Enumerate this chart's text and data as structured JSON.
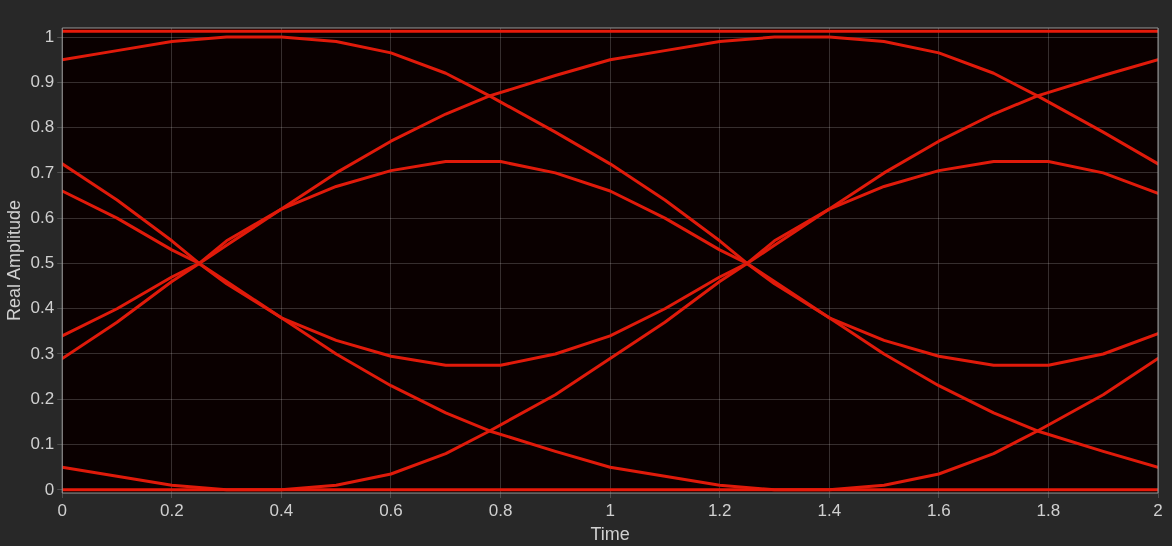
{
  "chart_data": {
    "type": "line",
    "xlabel": "Time",
    "ylabel": "Real Amplitude",
    "xlim": [
      0,
      2
    ],
    "ylim": [
      -0.007,
      1.02
    ],
    "xticks": [
      0,
      0.2,
      0.4,
      0.6,
      0.8,
      1,
      1.2,
      1.4,
      1.6,
      1.8,
      2
    ],
    "yticks": [
      0,
      0.1,
      0.2,
      0.3,
      0.4,
      0.5,
      0.6,
      0.7,
      0.8,
      0.9,
      1
    ],
    "grid": true,
    "legend": false,
    "marker": "none",
    "line_style": "solid",
    "series": [
      {
        "color": "#e81a0a",
        "x": [
          0,
          2
        ],
        "values": [
          1.013,
          1.013
        ]
      },
      {
        "color": "#e81a0a",
        "x": [
          0,
          2
        ],
        "values": [
          0,
          0
        ]
      },
      {
        "color": "#e01a0a",
        "x": [
          0,
          0.1,
          0.2,
          0.3,
          0.4,
          0.5,
          0.6,
          0.7,
          0.78,
          0.9,
          1,
          1.1,
          1.2,
          1.25,
          1.3,
          1.4,
          1.5,
          1.6,
          1.7,
          1.78,
          1.9,
          2
        ],
        "values": [
          0.95,
          0.97,
          0.99,
          1,
          1,
          0.99,
          0.965,
          0.92,
          0.87,
          0.79,
          0.72,
          0.64,
          0.55,
          0.5,
          0.455,
          0.38,
          0.3,
          0.23,
          0.17,
          0.13,
          0.085,
          0.05
        ]
      },
      {
        "color": "#e01a0a",
        "x": [
          0,
          0.1,
          0.2,
          0.3,
          0.4,
          0.5,
          0.6,
          0.7,
          0.78,
          0.9,
          1,
          1.1,
          1.2,
          1.25,
          1.3,
          1.4,
          1.5,
          1.6,
          1.7,
          1.78,
          1.9,
          2
        ],
        "values": [
          0.05,
          0.03,
          0.01,
          0,
          0,
          0.01,
          0.035,
          0.08,
          0.13,
          0.21,
          0.29,
          0.37,
          0.46,
          0.5,
          0.55,
          0.62,
          0.7,
          0.77,
          0.83,
          0.87,
          0.915,
          0.95
        ]
      },
      {
        "color": "#e01a0a",
        "x": [
          0,
          0.1,
          0.2,
          0.25,
          0.3,
          0.4,
          0.5,
          0.6,
          0.7,
          0.78,
          0.9,
          1,
          1.1,
          1.2,
          1.3,
          1.4,
          1.5,
          1.6,
          1.7,
          1.78,
          1.9,
          2
        ],
        "values": [
          0.72,
          0.64,
          0.55,
          0.5,
          0.455,
          0.38,
          0.3,
          0.23,
          0.17,
          0.13,
          0.085,
          0.05,
          0.03,
          0.01,
          0,
          0,
          0.01,
          0.035,
          0.08,
          0.13,
          0.21,
          0.29
        ]
      },
      {
        "color": "#e01a0a",
        "x": [
          0,
          0.1,
          0.2,
          0.25,
          0.3,
          0.4,
          0.5,
          0.6,
          0.7,
          0.8,
          0.9,
          1,
          1.1,
          1.2,
          1.25,
          1.3,
          1.4,
          1.5,
          1.6,
          1.7,
          1.8,
          1.9,
          2
        ],
        "values": [
          0.66,
          0.6,
          0.53,
          0.5,
          0.46,
          0.38,
          0.33,
          0.295,
          0.275,
          0.275,
          0.3,
          0.34,
          0.4,
          0.47,
          0.5,
          0.54,
          0.62,
          0.67,
          0.705,
          0.725,
          0.725,
          0.7,
          0.655
        ]
      },
      {
        "color": "#e01a0a",
        "x": [
          0,
          0.1,
          0.2,
          0.25,
          0.3,
          0.4,
          0.5,
          0.6,
          0.7,
          0.78,
          0.9,
          1,
          1.1,
          1.2,
          1.3,
          1.4,
          1.5,
          1.6,
          1.7,
          1.78,
          1.9,
          2
        ],
        "values": [
          0.29,
          0.37,
          0.46,
          0.5,
          0.55,
          0.62,
          0.7,
          0.77,
          0.83,
          0.87,
          0.915,
          0.95,
          0.97,
          0.99,
          1,
          1,
          0.99,
          0.965,
          0.92,
          0.87,
          0.79,
          0.72
        ]
      },
      {
        "color": "#e01a0a",
        "x": [
          0,
          0.1,
          0.2,
          0.25,
          0.3,
          0.4,
          0.5,
          0.6,
          0.7,
          0.8,
          0.9,
          1,
          1.1,
          1.2,
          1.25,
          1.3,
          1.4,
          1.5,
          1.6,
          1.7,
          1.8,
          1.9,
          2
        ],
        "values": [
          0.34,
          0.4,
          0.47,
          0.5,
          0.54,
          0.62,
          0.67,
          0.705,
          0.725,
          0.725,
          0.7,
          0.66,
          0.6,
          0.53,
          0.5,
          0.46,
          0.38,
          0.33,
          0.295,
          0.275,
          0.275,
          0.3,
          0.345
        ]
      }
    ]
  }
}
